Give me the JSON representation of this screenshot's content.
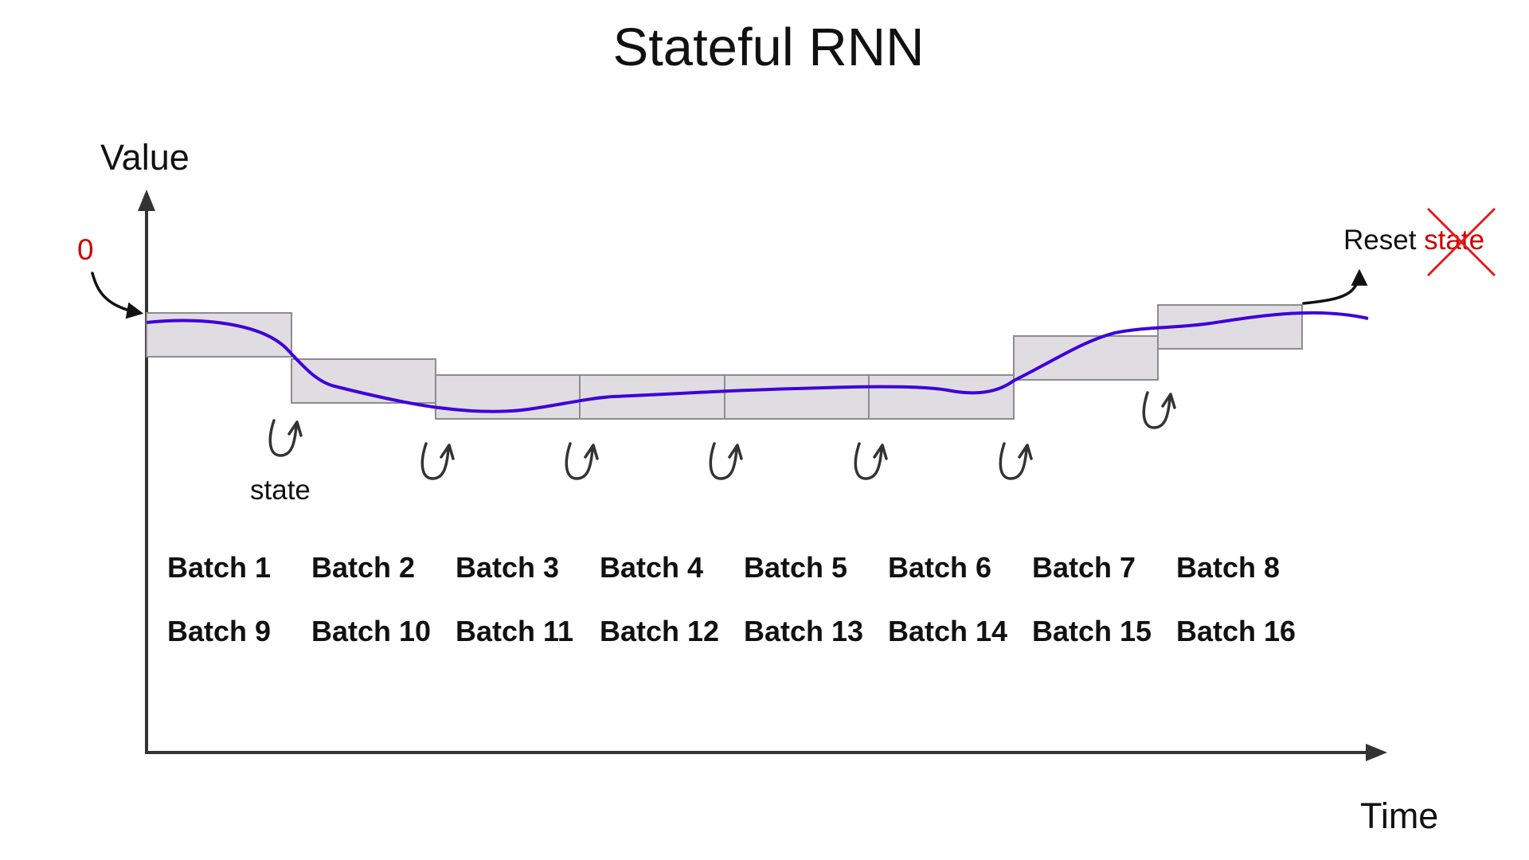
{
  "title": "Stateful RNN",
  "y_axis_label": "Value",
  "x_axis_label": "Time",
  "initial_state_label": "0",
  "state_label": "state",
  "reset_label": {
    "prefix": "Reset ",
    "crossed": "state"
  },
  "batches_row1": [
    "Batch 1",
    "Batch 2",
    "Batch 3",
    "Batch 4",
    "Batch 5",
    "Batch 6",
    "Batch 7",
    "Batch 8"
  ],
  "batches_row2": [
    "Batch 9",
    "Batch 10",
    "Batch 11",
    "Batch 12",
    "Batch 13",
    "Batch 14",
    "Batch 15",
    "Batch 16"
  ],
  "colors": {
    "series": "#3f00d9",
    "highlight": "#cc0000",
    "window_fill": "#e0dde2"
  },
  "icons": {
    "state_pass": "curved-up-arrow-icon",
    "reset_mark": "red-x-cross-icon"
  }
}
